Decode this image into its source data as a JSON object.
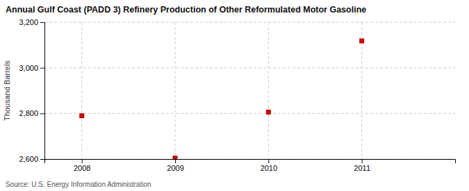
{
  "chart_data": {
    "type": "scatter",
    "title": "Annual Gulf Coast (PADD 3) Refinery Production of Other Reformulated Motor Gasoline",
    "ylabel": "Thousand Barrels",
    "source": "Source: U.S. Energy Information Administration",
    "x": [
      2008,
      2009,
      2010,
      2011
    ],
    "values": [
      2790,
      2604,
      2806,
      3118
    ],
    "xlim": [
      2007.6,
      2012.0
    ],
    "xticks": [
      2008,
      2009,
      2010,
      2011
    ],
    "ylim": [
      2600,
      3200
    ],
    "yticks": [
      {
        "value": 2600,
        "label": "2,600"
      },
      {
        "value": 2800,
        "label": "2,800"
      },
      {
        "value": 3000,
        "label": "3,000"
      },
      {
        "value": 3200,
        "label": "3,200"
      }
    ],
    "color": "#cc0000",
    "marker": "square",
    "grid": true
  }
}
